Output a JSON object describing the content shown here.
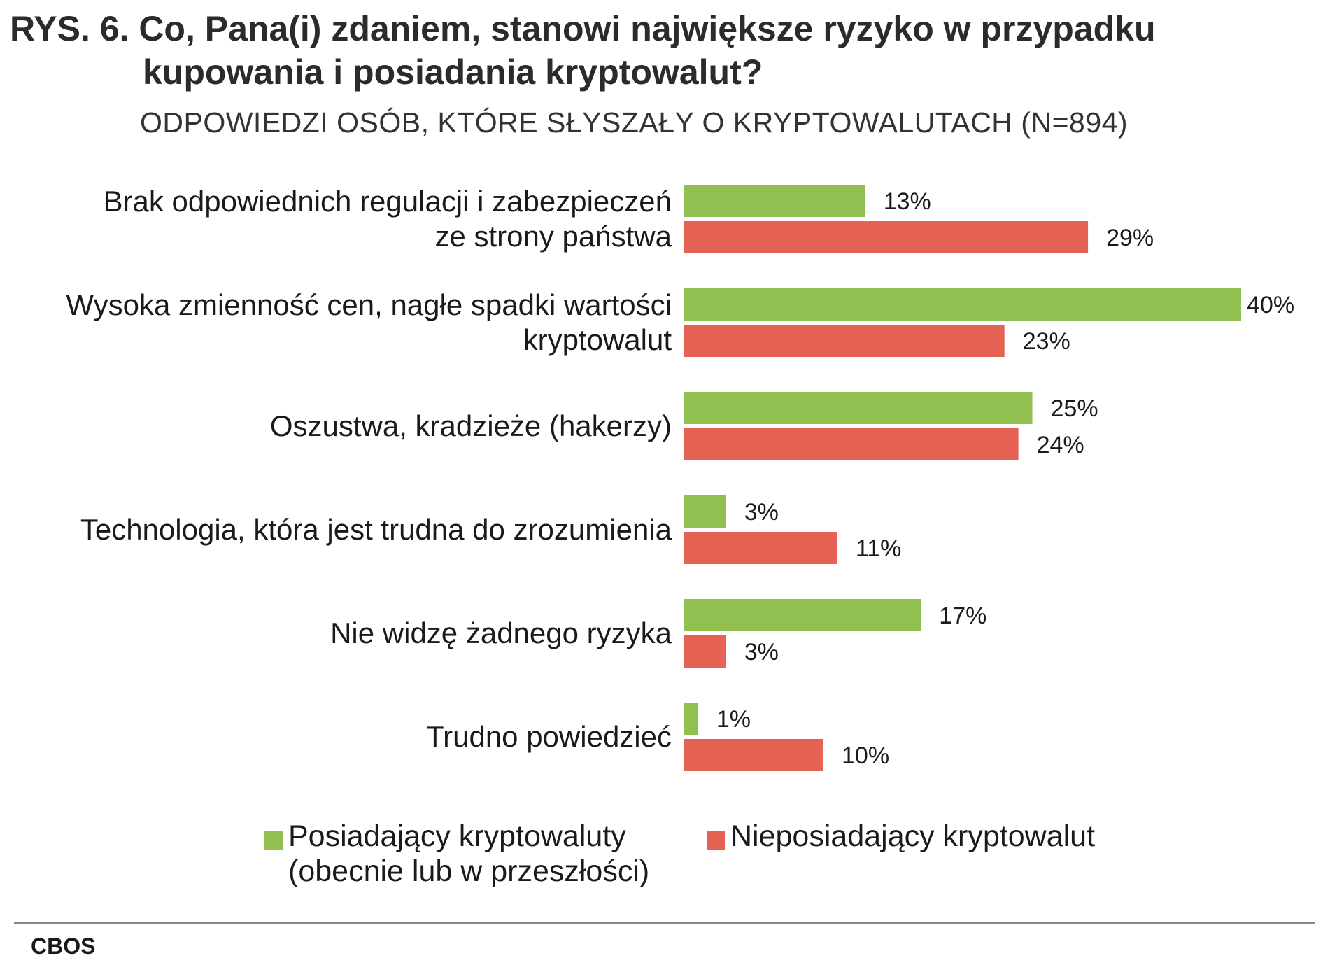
{
  "title_line1": "RYS. 6. Co, Pana(i) zdaniem, stanowi największe ryzyko w przypadku",
  "title_line2": "kupowania i posiadania kryptowalut?",
  "subtitle": "ODPOWIEDZI OSÓB, KTÓRE SŁYSZAŁY O KRYPTOWALUTACH (N=894)",
  "source": "CBOS",
  "chart_data": {
    "type": "bar",
    "orientation": "horizontal",
    "categories": [
      [
        "Brak odpowiednich regulacji i zabezpieczeń",
        "ze strony państwa"
      ],
      [
        "Wysoka zmienność cen, nagłe spadki wartości",
        "kryptowalut"
      ],
      [
        "Oszustwa, kradzieże (hakerzy)"
      ],
      [
        "Technologia, która jest trudna do zrozumienia"
      ],
      [
        "Nie widzę żadnego ryzyka"
      ],
      [
        "Trudno powiedzieć"
      ]
    ],
    "series": [
      {
        "name": "Posiadający kryptowaluty (obecnie lub w przeszłości)",
        "color": "#92c050",
        "values": [
          13,
          40,
          25,
          3,
          17,
          1
        ]
      },
      {
        "name": "Nieposiadający kryptowalut",
        "color": "#e66255",
        "values": [
          29,
          23,
          24,
          11,
          3,
          10
        ]
      }
    ],
    "value_suffix": "%",
    "xlim": [
      0,
      40
    ],
    "grid": false,
    "legend_position": "bottom"
  },
  "legend": {
    "item1_line1": "Posiadający kryptowaluty",
    "item1_line2": "(obecnie lub w przeszłości)",
    "item2": "Nieposiadający kryptowalut"
  }
}
